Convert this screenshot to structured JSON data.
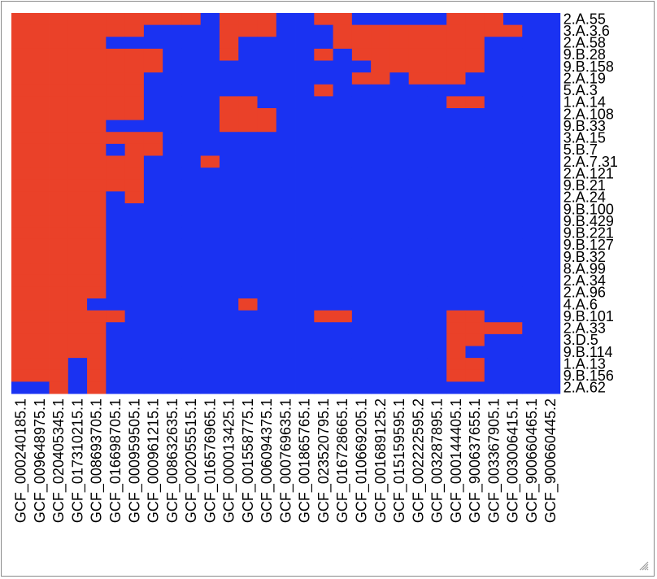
{
  "chart_data": {
    "type": "heatmap",
    "colors": {
      "present": "#ea4129",
      "absent": "#1a32f2"
    },
    "rows": [
      "2.A.55",
      "3.A.3.6",
      "2.A.58",
      "9.B.28",
      "9.B.158",
      "2.A.19",
      "5.A.3",
      "1.A.14",
      "2.A.108",
      "9.B.33",
      "3.A.15",
      "5.B.7",
      "2.A.7.31",
      "2.A.121",
      "9.B.21",
      "2.A.24",
      "9.B.100",
      "9.B.429",
      "9.B.221",
      "9.B.127",
      "9.B.32",
      "8.A.99",
      "2.A.34",
      "2.A.96",
      "4.A.6",
      "9.B.101",
      "2.A.33",
      "3.D.5",
      "9.B.114",
      "1.A.13",
      "9.B.156",
      "2.A.62"
    ],
    "columns": [
      "GCF_000240185.1",
      "GCF_009648975.1",
      "GCF_020405345.1",
      "GCF_017310215.1",
      "GCF_008693705.1",
      "GCF_016698705.1",
      "GCF_000959505.1",
      "GCF_000961215.1",
      "GCF_008632635.1",
      "GCF_002055515.1",
      "GCF_016576965.1",
      "GCF_000013425.1",
      "GCF_001558775.1",
      "GCF_006094375.1",
      "GCF_000769635.1",
      "GCF_001865765.1",
      "GCF_023520795.1",
      "GCF_016728665.1",
      "GCF_010669205.1",
      "GCF_001689125.2",
      "GCF_015159595.1",
      "GCF_002222595.2",
      "GCF_003287895.1",
      "GCF_000144405.1",
      "GCF_900637655.1",
      "GCF_003367905.1",
      "GCF_003006415.1",
      "GCF_900660465.1",
      "GCF_900660445.2"
    ],
    "values": [
      [
        1,
        1,
        1,
        1,
        1,
        1,
        1,
        1,
        1,
        1,
        0,
        1,
        1,
        1,
        0,
        0,
        1,
        1,
        0,
        0,
        0,
        0,
        0,
        1,
        1,
        1,
        0,
        0,
        0
      ],
      [
        1,
        1,
        1,
        1,
        1,
        1,
        1,
        0,
        0,
        0,
        0,
        1,
        1,
        1,
        0,
        0,
        0,
        1,
        1,
        1,
        1,
        1,
        1,
        1,
        1,
        1,
        1,
        0,
        0
      ],
      [
        1,
        1,
        1,
        1,
        1,
        0,
        0,
        0,
        0,
        0,
        0,
        1,
        0,
        0,
        0,
        0,
        0,
        1,
        1,
        1,
        1,
        1,
        1,
        1,
        1,
        0,
        0,
        0,
        0
      ],
      [
        1,
        1,
        1,
        1,
        1,
        1,
        1,
        1,
        0,
        0,
        0,
        1,
        0,
        0,
        0,
        0,
        1,
        0,
        1,
        1,
        1,
        1,
        1,
        1,
        1,
        0,
        0,
        0,
        0
      ],
      [
        1,
        1,
        1,
        1,
        1,
        1,
        1,
        1,
        0,
        0,
        0,
        0,
        0,
        0,
        0,
        0,
        0,
        0,
        0,
        1,
        1,
        1,
        1,
        1,
        1,
        0,
        0,
        0,
        0
      ],
      [
        1,
        1,
        1,
        1,
        1,
        1,
        1,
        0,
        0,
        0,
        0,
        0,
        0,
        0,
        0,
        0,
        0,
        0,
        1,
        1,
        0,
        1,
        1,
        1,
        0,
        0,
        0,
        0,
        0
      ],
      [
        1,
        1,
        1,
        1,
        1,
        1,
        1,
        0,
        0,
        0,
        0,
        0,
        0,
        0,
        0,
        0,
        1,
        0,
        0,
        0,
        0,
        0,
        0,
        0,
        0,
        0,
        0,
        0,
        0
      ],
      [
        1,
        1,
        1,
        1,
        1,
        1,
        1,
        0,
        0,
        0,
        0,
        1,
        1,
        0,
        0,
        0,
        0,
        0,
        0,
        0,
        0,
        0,
        0,
        1,
        1,
        0,
        0,
        0,
        0
      ],
      [
        1,
        1,
        1,
        1,
        1,
        1,
        1,
        0,
        0,
        0,
        0,
        1,
        1,
        1,
        0,
        0,
        0,
        0,
        0,
        0,
        0,
        0,
        0,
        0,
        0,
        0,
        0,
        0,
        0
      ],
      [
        1,
        1,
        1,
        1,
        1,
        0,
        0,
        0,
        0,
        0,
        0,
        1,
        1,
        1,
        0,
        0,
        0,
        0,
        0,
        0,
        0,
        0,
        0,
        0,
        0,
        0,
        0,
        0,
        0
      ],
      [
        1,
        1,
        1,
        1,
        1,
        1,
        1,
        1,
        0,
        0,
        0,
        0,
        0,
        0,
        0,
        0,
        0,
        0,
        0,
        0,
        0,
        0,
        0,
        0,
        0,
        0,
        0,
        0,
        0
      ],
      [
        1,
        1,
        1,
        1,
        1,
        0,
        1,
        1,
        0,
        0,
        0,
        0,
        0,
        0,
        0,
        0,
        0,
        0,
        0,
        0,
        0,
        0,
        0,
        0,
        0,
        0,
        0,
        0,
        0
      ],
      [
        1,
        1,
        1,
        1,
        1,
        1,
        1,
        0,
        0,
        0,
        1,
        0,
        0,
        0,
        0,
        0,
        0,
        0,
        0,
        0,
        0,
        0,
        0,
        0,
        0,
        0,
        0,
        0,
        0
      ],
      [
        1,
        1,
        1,
        1,
        1,
        1,
        1,
        0,
        0,
        0,
        0,
        0,
        0,
        0,
        0,
        0,
        0,
        0,
        0,
        0,
        0,
        0,
        0,
        0,
        0,
        0,
        0,
        0,
        0
      ],
      [
        1,
        1,
        1,
        1,
        1,
        1,
        1,
        0,
        0,
        0,
        0,
        0,
        0,
        0,
        0,
        0,
        0,
        0,
        0,
        0,
        0,
        0,
        0,
        0,
        0,
        0,
        0,
        0,
        0
      ],
      [
        1,
        1,
        1,
        1,
        1,
        0,
        1,
        0,
        0,
        0,
        0,
        0,
        0,
        0,
        0,
        0,
        0,
        0,
        0,
        0,
        0,
        0,
        0,
        0,
        0,
        0,
        0,
        0,
        0
      ],
      [
        1,
        1,
        1,
        1,
        1,
        0,
        0,
        0,
        0,
        0,
        0,
        0,
        0,
        0,
        0,
        0,
        0,
        0,
        0,
        0,
        0,
        0,
        0,
        0,
        0,
        0,
        0,
        0,
        0
      ],
      [
        1,
        1,
        1,
        1,
        1,
        0,
        0,
        0,
        0,
        0,
        0,
        0,
        0,
        0,
        0,
        0,
        0,
        0,
        0,
        0,
        0,
        0,
        0,
        0,
        0,
        0,
        0,
        0,
        0
      ],
      [
        1,
        1,
        1,
        1,
        1,
        0,
        0,
        0,
        0,
        0,
        0,
        0,
        0,
        0,
        0,
        0,
        0,
        0,
        0,
        0,
        0,
        0,
        0,
        0,
        0,
        0,
        0,
        0,
        0
      ],
      [
        1,
        1,
        1,
        1,
        1,
        0,
        0,
        0,
        0,
        0,
        0,
        0,
        0,
        0,
        0,
        0,
        0,
        0,
        0,
        0,
        0,
        0,
        0,
        0,
        0,
        0,
        0,
        0,
        0
      ],
      [
        1,
        1,
        1,
        1,
        1,
        0,
        0,
        0,
        0,
        0,
        0,
        0,
        0,
        0,
        0,
        0,
        0,
        0,
        0,
        0,
        0,
        0,
        0,
        0,
        0,
        0,
        0,
        0,
        0
      ],
      [
        1,
        1,
        1,
        1,
        1,
        0,
        0,
        0,
        0,
        0,
        0,
        0,
        0,
        0,
        0,
        0,
        0,
        0,
        0,
        0,
        0,
        0,
        0,
        0,
        0,
        0,
        0,
        0,
        0
      ],
      [
        1,
        1,
        1,
        1,
        1,
        0,
        0,
        0,
        0,
        0,
        0,
        0,
        0,
        0,
        0,
        0,
        0,
        0,
        0,
        0,
        0,
        0,
        0,
        0,
        0,
        0,
        0,
        0,
        0
      ],
      [
        1,
        1,
        1,
        1,
        1,
        0,
        0,
        0,
        0,
        0,
        0,
        0,
        0,
        0,
        0,
        0,
        0,
        0,
        0,
        0,
        0,
        0,
        0,
        0,
        0,
        0,
        0,
        0,
        0
      ],
      [
        1,
        1,
        1,
        1,
        0,
        0,
        0,
        0,
        0,
        0,
        0,
        0,
        1,
        0,
        0,
        0,
        0,
        0,
        0,
        0,
        0,
        0,
        0,
        0,
        0,
        0,
        0,
        0,
        0
      ],
      [
        1,
        1,
        1,
        1,
        1,
        1,
        0,
        0,
        0,
        0,
        0,
        0,
        0,
        0,
        0,
        0,
        1,
        1,
        0,
        0,
        0,
        0,
        0,
        1,
        1,
        0,
        0,
        0,
        0
      ],
      [
        1,
        1,
        1,
        1,
        1,
        0,
        0,
        0,
        0,
        0,
        0,
        0,
        0,
        0,
        0,
        0,
        0,
        0,
        0,
        0,
        0,
        0,
        0,
        1,
        1,
        1,
        1,
        0,
        0
      ],
      [
        1,
        1,
        1,
        1,
        1,
        0,
        0,
        0,
        0,
        0,
        0,
        0,
        0,
        0,
        0,
        0,
        0,
        0,
        0,
        0,
        0,
        0,
        0,
        1,
        1,
        0,
        0,
        0,
        0
      ],
      [
        1,
        1,
        1,
        1,
        1,
        0,
        0,
        0,
        0,
        0,
        0,
        0,
        0,
        0,
        0,
        0,
        0,
        0,
        0,
        0,
        0,
        0,
        0,
        1,
        0,
        0,
        0,
        0,
        0
      ],
      [
        1,
        1,
        1,
        0,
        1,
        0,
        0,
        0,
        0,
        0,
        0,
        0,
        0,
        0,
        0,
        0,
        0,
        0,
        0,
        0,
        0,
        0,
        0,
        1,
        1,
        0,
        0,
        0,
        0
      ],
      [
        1,
        1,
        1,
        0,
        1,
        0,
        0,
        0,
        0,
        0,
        0,
        0,
        0,
        0,
        0,
        0,
        0,
        0,
        0,
        0,
        0,
        0,
        0,
        1,
        1,
        0,
        0,
        0,
        0
      ],
      [
        0,
        0,
        1,
        0,
        1,
        0,
        0,
        0,
        0,
        0,
        0,
        0,
        0,
        0,
        0,
        0,
        0,
        0,
        0,
        0,
        0,
        0,
        0,
        0,
        0,
        0,
        0,
        0,
        0
      ]
    ],
    "legend": "none",
    "grid": false
  },
  "ui": {
    "resize_grip": "resize-grip-icon"
  }
}
